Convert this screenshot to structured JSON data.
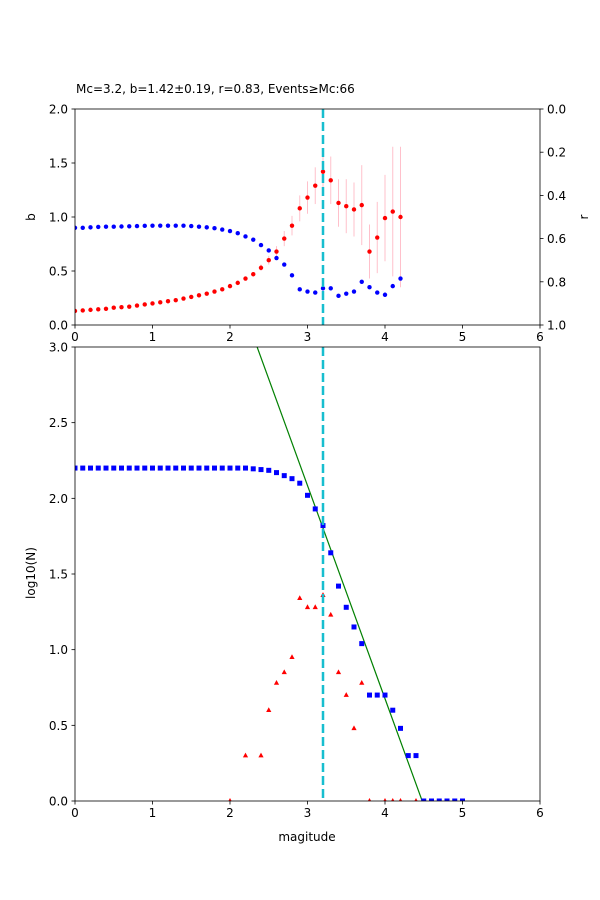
{
  "figure": {
    "title": "Mc=3.2, b=1.42±0.19, r=0.83, Events≥Mc:66"
  },
  "chart_data": [
    {
      "type": "scatter",
      "ylabel": "b",
      "ylabel_right": "r",
      "xlim": [
        0,
        6
      ],
      "ylim": [
        0,
        2
      ],
      "ylim_right": [
        1,
        0
      ],
      "right_axis_inverted": true,
      "xticks": [
        "0",
        "1",
        "2",
        "3",
        "4",
        "5",
        "6"
      ],
      "yticks": [
        "0.0",
        "0.5",
        "1.0",
        "1.5",
        "2.0"
      ],
      "yticks_right": [
        "0.0",
        "0.2",
        "0.4",
        "0.6",
        "0.8",
        "1.0"
      ],
      "mc_line": {
        "x": 3.2,
        "color": "#17becf",
        "style": "dashed"
      },
      "series": [
        {
          "axis": "left",
          "color": "#ff0000",
          "errorbar_color": "#ffc0cb",
          "x": [
            0,
            0.1,
            0.2,
            0.3,
            0.4,
            0.5,
            0.6,
            0.7,
            0.8,
            0.9,
            1.0,
            1.1,
            1.2,
            1.3,
            1.4,
            1.5,
            1.6,
            1.7,
            1.8,
            1.9,
            2.0,
            2.1,
            2.2,
            2.3,
            2.4,
            2.5,
            2.6,
            2.7,
            2.8,
            2.9,
            3.0,
            3.1,
            3.2,
            3.3,
            3.4,
            3.5,
            3.6,
            3.7,
            3.8,
            3.9,
            4.0,
            4.1,
            4.2
          ],
          "y": [
            0.13,
            0.135,
            0.14,
            0.145,
            0.15,
            0.16,
            0.165,
            0.17,
            0.18,
            0.19,
            0.2,
            0.21,
            0.22,
            0.23,
            0.245,
            0.26,
            0.275,
            0.29,
            0.31,
            0.33,
            0.36,
            0.39,
            0.43,
            0.47,
            0.53,
            0.6,
            0.68,
            0.8,
            0.92,
            1.08,
            1.18,
            1.29,
            1.42,
            1.34,
            1.13,
            1.1,
            1.07,
            1.11,
            0.68,
            0.81,
            0.99,
            1.05,
            1.0
          ],
          "err": [
            0.01,
            0.01,
            0.01,
            0.01,
            0.01,
            0.01,
            0.01,
            0.01,
            0.01,
            0.01,
            0.01,
            0.01,
            0.01,
            0.01,
            0.01,
            0.01,
            0.01,
            0.01,
            0.01,
            0.01,
            0.01,
            0.01,
            0.02,
            0.02,
            0.03,
            0.04,
            0.05,
            0.07,
            0.09,
            0.12,
            0.15,
            0.17,
            0.19,
            0.22,
            0.22,
            0.25,
            0.25,
            0.37,
            0.25,
            0.33,
            0.4,
            0.6,
            0.65
          ]
        },
        {
          "axis": "right",
          "color": "#0000ff",
          "x": [
            0,
            0.1,
            0.2,
            0.3,
            0.4,
            0.5,
            0.6,
            0.7,
            0.8,
            0.9,
            1.0,
            1.1,
            1.2,
            1.3,
            1.4,
            1.5,
            1.6,
            1.7,
            1.8,
            1.9,
            2.0,
            2.1,
            2.2,
            2.3,
            2.4,
            2.5,
            2.6,
            2.7,
            2.8,
            2.9,
            3.0,
            3.1,
            3.2,
            3.3,
            3.4,
            3.5,
            3.6,
            3.7,
            3.8,
            3.9,
            4.0,
            4.1,
            4.2
          ],
          "y": [
            0.55,
            0.55,
            0.548,
            0.546,
            0.545,
            0.545,
            0.544,
            0.543,
            0.542,
            0.541,
            0.54,
            0.54,
            0.54,
            0.54,
            0.54,
            0.542,
            0.545,
            0.548,
            0.552,
            0.558,
            0.565,
            0.575,
            0.59,
            0.605,
            0.63,
            0.655,
            0.69,
            0.72,
            0.77,
            0.835,
            0.845,
            0.85,
            0.83,
            0.83,
            0.865,
            0.855,
            0.845,
            0.8,
            0.825,
            0.85,
            0.86,
            0.82,
            0.785
          ]
        }
      ]
    },
    {
      "type": "scatter",
      "xlabel": "magitude",
      "ylabel": "log10(N)",
      "xlim": [
        0,
        6
      ],
      "ylim": [
        0,
        3
      ],
      "xticks": [
        "0",
        "1",
        "2",
        "3",
        "4",
        "5",
        "6"
      ],
      "yticks": [
        "0.0",
        "0.5",
        "1.0",
        "1.5",
        "2.0",
        "2.5",
        "3.0"
      ],
      "mc_line": {
        "x": 3.2,
        "color": "#17becf",
        "style": "dashed"
      },
      "fit_line": {
        "color": "#008000",
        "x": [
          2.35,
          4.48
        ],
        "y": [
          3.0,
          0.0
        ]
      },
      "series": [
        {
          "marker": "square",
          "color": "#0000ff",
          "x": [
            0,
            0.1,
            0.2,
            0.3,
            0.4,
            0.5,
            0.6,
            0.7,
            0.8,
            0.9,
            1.0,
            1.1,
            1.2,
            1.3,
            1.4,
            1.5,
            1.6,
            1.7,
            1.8,
            1.9,
            2.0,
            2.1,
            2.2,
            2.3,
            2.4,
            2.5,
            2.6,
            2.7,
            2.8,
            2.9,
            3.0,
            3.1,
            3.2,
            3.3,
            3.4,
            3.5,
            3.6,
            3.7,
            3.8,
            3.9,
            4.0,
            4.1,
            4.2,
            4.3,
            4.4,
            4.5,
            4.6,
            4.7,
            4.8,
            4.9,
            5.0
          ],
          "y": [
            2.2,
            2.2,
            2.2,
            2.2,
            2.2,
            2.2,
            2.2,
            2.2,
            2.2,
            2.2,
            2.2,
            2.2,
            2.2,
            2.2,
            2.2,
            2.2,
            2.2,
            2.2,
            2.2,
            2.2,
            2.2,
            2.2,
            2.2,
            2.195,
            2.19,
            2.185,
            2.17,
            2.15,
            2.13,
            2.1,
            2.02,
            1.93,
            1.82,
            1.64,
            1.42,
            1.28,
            1.15,
            1.04,
            0.7,
            0.7,
            0.7,
            0.6,
            0.48,
            0.3,
            0.3,
            0.0,
            0.0,
            0.0,
            0.0,
            0.0,
            0.0
          ]
        },
        {
          "marker": "triangle",
          "color": "#ff0000",
          "x": [
            2.0,
            2.2,
            2.4,
            2.5,
            2.6,
            2.7,
            2.8,
            2.9,
            3.0,
            3.1,
            3.2,
            3.3,
            3.4,
            3.5,
            3.6,
            3.7,
            3.8,
            4.0,
            4.1,
            4.2,
            4.4
          ],
          "y": [
            0.0,
            0.3,
            0.3,
            0.6,
            0.78,
            0.85,
            0.95,
            1.34,
            1.28,
            1.28,
            1.36,
            1.23,
            0.85,
            0.7,
            0.48,
            0.78,
            0.0,
            0.0,
            0.0,
            0.0,
            0.0
          ]
        }
      ]
    }
  ]
}
